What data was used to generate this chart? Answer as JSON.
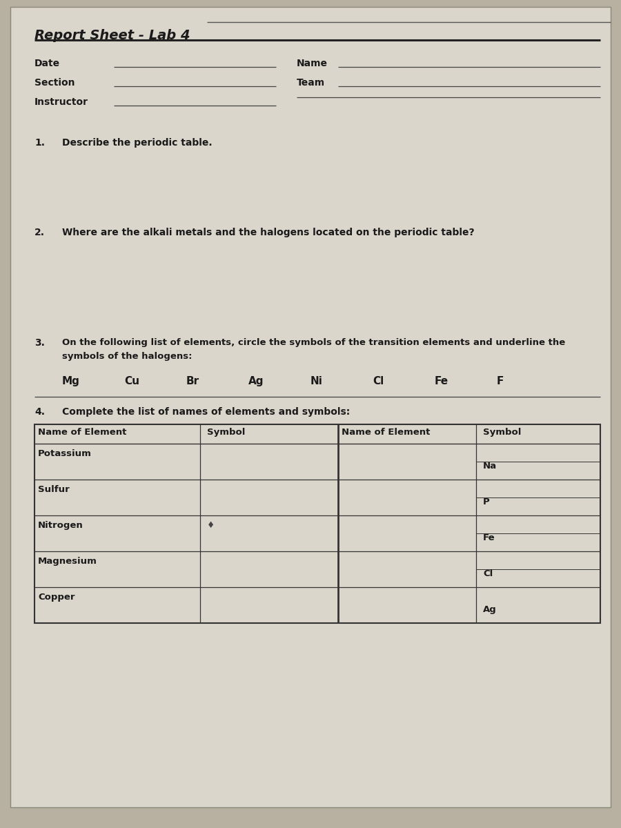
{
  "title": "Report Sheet - Lab 4",
  "bg_color": "#b8b0a0",
  "paper_color": "#dbd6cc",
  "title_fontsize": 13,
  "header_labels_left": [
    "Date",
    "Section",
    "Instructor"
  ],
  "header_labels_right": [
    "Name",
    "Team"
  ],
  "q1_text": "Describe the periodic table.",
  "q2_text": "Where are the alkali metals and the halogens located on the periodic table?",
  "q3_line1": "On the following list of elements, circle the symbols of the transition elements and underline the",
  "q3_line2": "symbols of the halogens:",
  "elements_row": [
    "Mg",
    "Cu",
    "Br",
    "Ag",
    "Ni",
    "Cl",
    "Fe",
    "F"
  ],
  "q4_text": "Complete the list of names of elements and symbols:",
  "table_left_names": [
    "Potassium",
    "Sulfur",
    "Nitrogen",
    "Magnesium",
    "Copper"
  ],
  "table_right_symbols": [
    "Na",
    "P",
    "Fe",
    "Cl",
    "Ag"
  ],
  "nitrogen_mark": "♦",
  "text_color": "#1a1a1a",
  "line_color": "#444444",
  "table_line_color": "#333333"
}
